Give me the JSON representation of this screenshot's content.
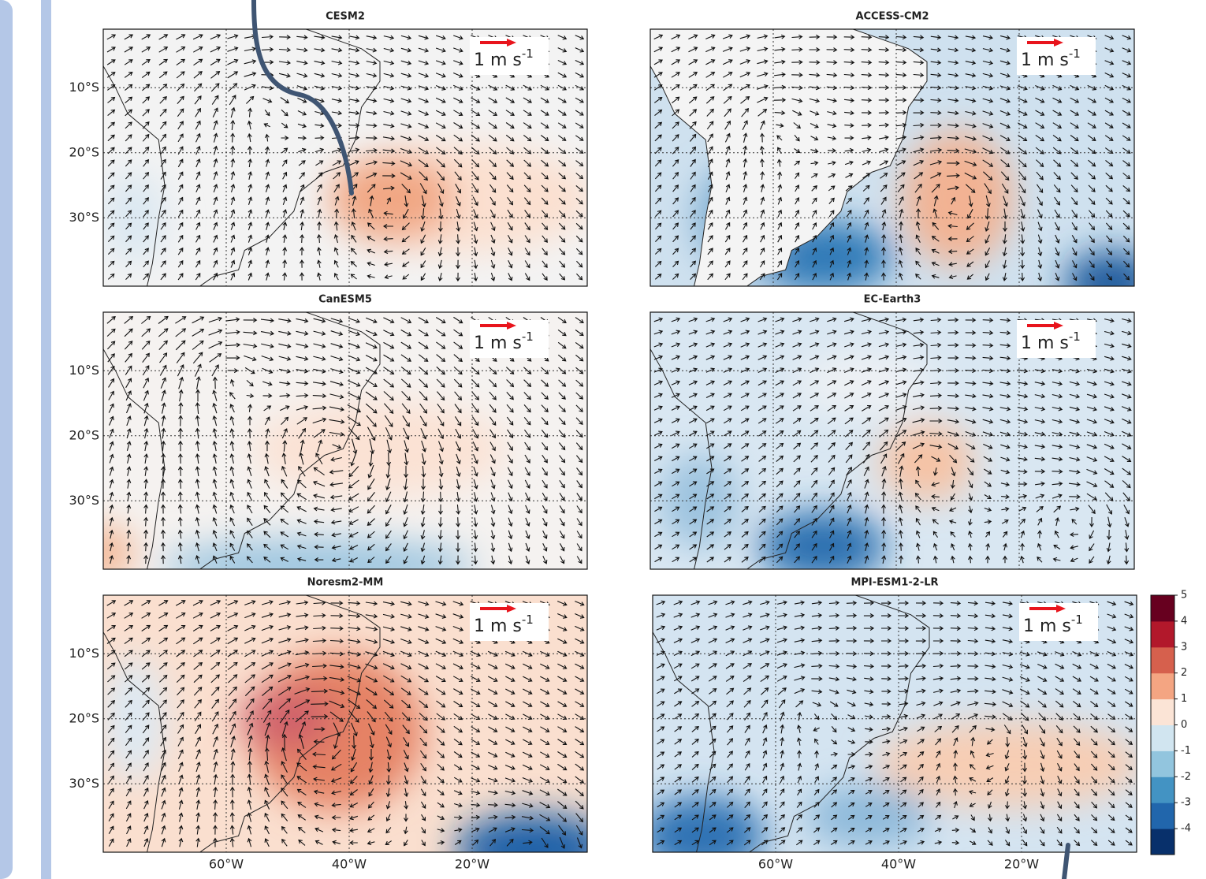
{
  "panels": [
    {
      "title": "CESM2"
    },
    {
      "title": "ACCESS-CM2"
    },
    {
      "title": "CanESM5"
    },
    {
      "title": "EC-Earth3"
    },
    {
      "title": "Noresm2-MM"
    },
    {
      "title": "MPI-ESM1-2-LR"
    }
  ],
  "lat_ticks": [
    "10°S",
    "20°S",
    "30°S"
  ],
  "lon_ticks": [
    "60°W",
    "40°W",
    "20°W"
  ],
  "reference_vector": {
    "text": "1 m s",
    "superscript": "-1",
    "color": "#e8141c"
  },
  "colorbar": {
    "lim": [
      -5,
      5
    ],
    "ticks": [
      -4,
      -3,
      -2,
      -1,
      0,
      1,
      2,
      3,
      4,
      5
    ],
    "colors": [
      "#08306b",
      "#2166ac",
      "#4393c3",
      "#92c5de",
      "#d1e5f0",
      "#fbe4d6",
      "#f4a582",
      "#d6604d",
      "#b2182b",
      "#67001f"
    ]
  }
}
